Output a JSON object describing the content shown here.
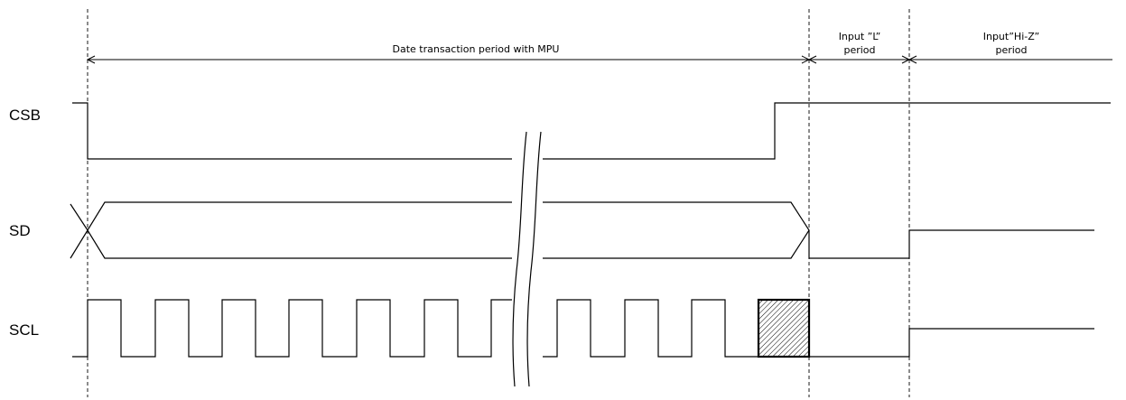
{
  "signals": {
    "csb": "CSB",
    "sd": "SD",
    "scl": "SCL"
  },
  "periods": {
    "transaction": "Date transaction period with MPU",
    "input_l_line1": "Input ”L”",
    "input_l_line2": "period",
    "input_hiz_line1": "Input”Hi-Z”",
    "input_hiz_line2": "period"
  }
}
